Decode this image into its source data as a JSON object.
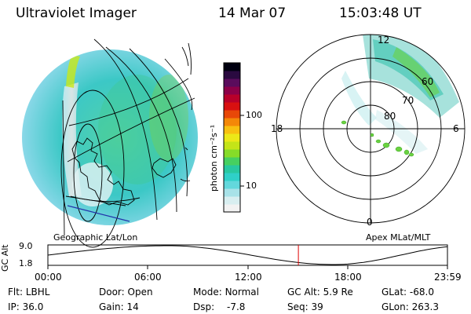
{
  "header": {
    "instrument": "Ultraviolet Imager",
    "date": "14 Mar 07",
    "time": "15:03:48 UT"
  },
  "colorbar": {
    "label": "photon cm⁻²s⁻¹",
    "tick_100": "100",
    "tick_10": "10",
    "colors": [
      "#f2f2f2",
      "#d8eef0",
      "#a8e2e8",
      "#63d8dc",
      "#2fd0c8",
      "#28c8a0",
      "#46d060",
      "#86dc28",
      "#c4e418",
      "#ece818",
      "#f8c010",
      "#f48808",
      "#e84808",
      "#d81010",
      "#b8002a",
      "#8c0048",
      "#5a0c5c",
      "#2a0a40",
      "#000010"
    ]
  },
  "left_panel": {
    "label": "Geographic Lat/Lon"
  },
  "right_panel": {
    "label": "Apex MLat/MLT",
    "mlt_12": "12",
    "mlt_18": "18",
    "mlt_6": "6",
    "mlt_0": "0",
    "lat_60": "60",
    "lat_70": "70",
    "lat_80": "80"
  },
  "altitude_plot": {
    "axis_label": "GC Alt",
    "y_top": "9.0",
    "y_bottom": "1.8",
    "time_ticks": [
      "00:00",
      "06:00",
      "12:00",
      "18:00",
      "23:59"
    ],
    "current_time_fraction": 0.627
  },
  "status": {
    "flt_label": "Flt:",
    "flt_value": "LBHL",
    "ip_label": "IP:",
    "ip_value": "36.0",
    "door_label": "Door:",
    "door_value": "Open",
    "gain_label": "Gain:",
    "gain_value": "14",
    "mode_label": "Mode:",
    "mode_value": "Normal",
    "dsp_label": "Dsp:",
    "dsp_value": "-7.8",
    "gcalt_label": "GC Alt:",
    "gcalt_value": "5.9 Re",
    "seq_label": "Seq:",
    "seq_value": "39",
    "glat_label": "GLat:",
    "glat_value": "-68.0",
    "glon_label": "GLon:",
    "glon_value": "263.3"
  },
  "colors": {
    "altitude_curve": "#000000",
    "current_time_marker": "#e00000"
  }
}
